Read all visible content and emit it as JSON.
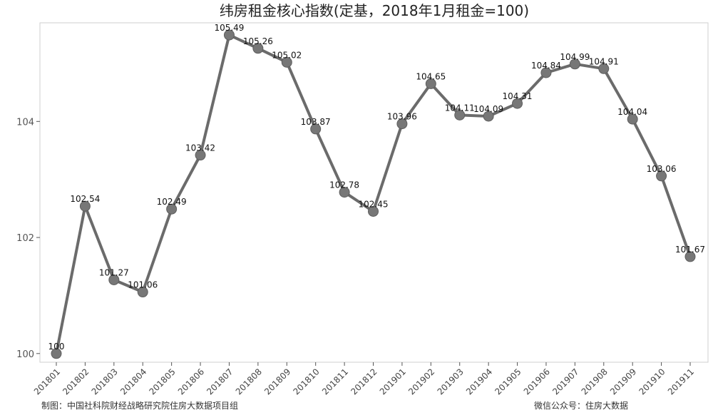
{
  "chart_data": {
    "type": "line",
    "title": "纬房租金核心指数(定基，2018年1月租金=100)",
    "xlabel": "",
    "ylabel": "",
    "categories": [
      "201801",
      "201802",
      "201803",
      "201804",
      "201805",
      "201806",
      "201807",
      "201808",
      "201809",
      "201810",
      "201811",
      "201812",
      "201901",
      "201902",
      "201903",
      "201904",
      "201905",
      "201906",
      "201907",
      "201908",
      "201909",
      "201910",
      "201911"
    ],
    "series": [
      {
        "values": [
          100,
          102.54,
          101.27,
          101.06,
          102.49,
          103.42,
          105.49,
          105.26,
          105.02,
          103.87,
          102.78,
          102.45,
          103.96,
          104.65,
          104.11,
          104.09,
          104.31,
          104.84,
          104.99,
          104.91,
          104.04,
          103.06,
          101.67
        ],
        "labels": [
          "100",
          "102.54",
          "101.27",
          "101.06",
          "102.49",
          "103.42",
          "105.49",
          "105.26",
          "105.02",
          "103.87",
          "102.78",
          "102.45",
          "103.96",
          "104.65",
          "104.11",
          "104.09",
          "104.31",
          "104.84",
          "104.99",
          "104.91",
          "104.04",
          "103.06",
          "101.67"
        ]
      }
    ],
    "yticks": [
      "100",
      "102",
      "104"
    ],
    "ylim": [
      99.85,
      105.7
    ],
    "grid": false,
    "line_color": "#6b6b6b",
    "marker_color": "#777777"
  },
  "footer": {
    "left": "制图：中国社科院财经战略研究院住房大数据项目组",
    "right": "微信公众号：住房大数据"
  }
}
